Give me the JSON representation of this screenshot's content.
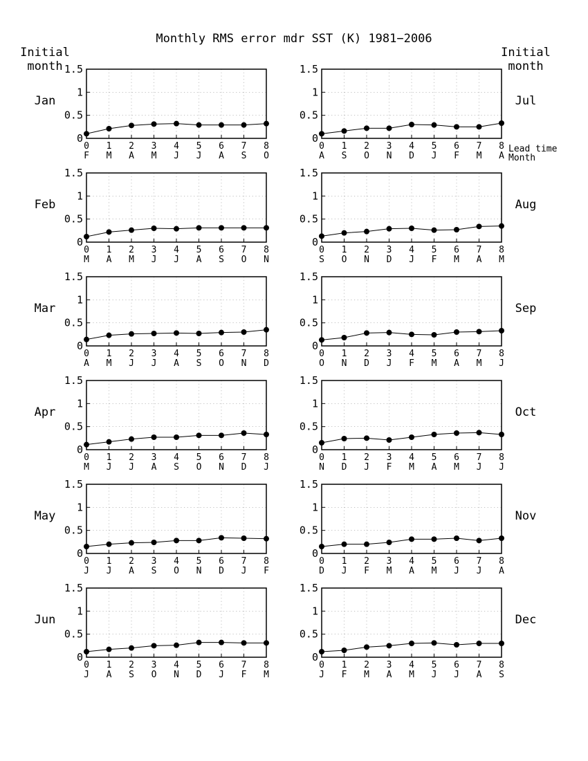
{
  "title": "Monthly RMS error    mdr SST (K) 1981−2006",
  "left_header": [
    "Initial",
    "month"
  ],
  "right_header": [
    "Initial",
    "month"
  ],
  "row_label_lead": "Lead time",
  "row_label_month": "Month",
  "chart_data": {
    "type": "line",
    "xlabel": "Lead time",
    "ylabel": "",
    "x_ticks": [
      "0",
      "1",
      "2",
      "3",
      "4",
      "5",
      "6",
      "7",
      "8"
    ],
    "y_ticks": [
      "0",
      "0.5",
      "1",
      "1.5"
    ],
    "ylim": [
      0,
      1.5
    ],
    "xlim": [
      0,
      8
    ],
    "grid": true,
    "panels": [
      {
        "initial_month": "Jan",
        "months": [
          "F",
          "M",
          "A",
          "M",
          "J",
          "J",
          "A",
          "S",
          "O"
        ],
        "values": [
          0.1,
          0.21,
          0.28,
          0.31,
          0.32,
          0.29,
          0.29,
          0.29,
          0.32
        ]
      },
      {
        "initial_month": "Jul",
        "months": [
          "A",
          "S",
          "O",
          "N",
          "D",
          "J",
          "F",
          "M",
          "A"
        ],
        "values": [
          0.1,
          0.16,
          0.22,
          0.22,
          0.3,
          0.29,
          0.25,
          0.25,
          0.33
        ]
      },
      {
        "initial_month": "Feb",
        "months": [
          "M",
          "A",
          "M",
          "J",
          "J",
          "A",
          "S",
          "O",
          "N"
        ],
        "values": [
          0.12,
          0.22,
          0.26,
          0.3,
          0.29,
          0.31,
          0.31,
          0.31,
          0.31
        ]
      },
      {
        "initial_month": "Aug",
        "months": [
          "S",
          "O",
          "N",
          "D",
          "J",
          "F",
          "M",
          "A",
          "M"
        ],
        "values": [
          0.13,
          0.2,
          0.23,
          0.29,
          0.3,
          0.26,
          0.27,
          0.34,
          0.35
        ]
      },
      {
        "initial_month": "Mar",
        "months": [
          "A",
          "M",
          "J",
          "J",
          "A",
          "S",
          "O",
          "N",
          "D"
        ],
        "values": [
          0.14,
          0.23,
          0.26,
          0.27,
          0.28,
          0.27,
          0.29,
          0.3,
          0.35
        ]
      },
      {
        "initial_month": "Sep",
        "months": [
          "O",
          "N",
          "D",
          "J",
          "F",
          "M",
          "A",
          "M",
          "J"
        ],
        "values": [
          0.13,
          0.18,
          0.28,
          0.29,
          0.25,
          0.24,
          0.3,
          0.31,
          0.33
        ]
      },
      {
        "initial_month": "Apr",
        "months": [
          "M",
          "J",
          "J",
          "A",
          "S",
          "O",
          "N",
          "D",
          "J"
        ],
        "values": [
          0.11,
          0.17,
          0.23,
          0.27,
          0.27,
          0.31,
          0.31,
          0.36,
          0.33
        ]
      },
      {
        "initial_month": "Oct",
        "months": [
          "N",
          "D",
          "J",
          "F",
          "M",
          "A",
          "M",
          "J",
          "J"
        ],
        "values": [
          0.15,
          0.24,
          0.25,
          0.21,
          0.27,
          0.33,
          0.36,
          0.37,
          0.33
        ]
      },
      {
        "initial_month": "May",
        "months": [
          "J",
          "J",
          "A",
          "S",
          "O",
          "N",
          "D",
          "J",
          "F"
        ],
        "values": [
          0.15,
          0.2,
          0.23,
          0.24,
          0.28,
          0.28,
          0.34,
          0.33,
          0.32
        ]
      },
      {
        "initial_month": "Nov",
        "months": [
          "D",
          "J",
          "F",
          "M",
          "A",
          "M",
          "J",
          "J",
          "A"
        ],
        "values": [
          0.15,
          0.2,
          0.2,
          0.24,
          0.31,
          0.31,
          0.33,
          0.28,
          0.33
        ]
      },
      {
        "initial_month": "Jun",
        "months": [
          "J",
          "A",
          "S",
          "O",
          "N",
          "D",
          "J",
          "F",
          "M"
        ],
        "values": [
          0.12,
          0.17,
          0.2,
          0.25,
          0.26,
          0.32,
          0.32,
          0.31,
          0.31
        ]
      },
      {
        "initial_month": "Dec",
        "months": [
          "J",
          "F",
          "M",
          "A",
          "M",
          "J",
          "J",
          "A",
          "S"
        ],
        "values": [
          0.12,
          0.15,
          0.22,
          0.25,
          0.3,
          0.31,
          0.27,
          0.3,
          0.3
        ]
      }
    ]
  }
}
